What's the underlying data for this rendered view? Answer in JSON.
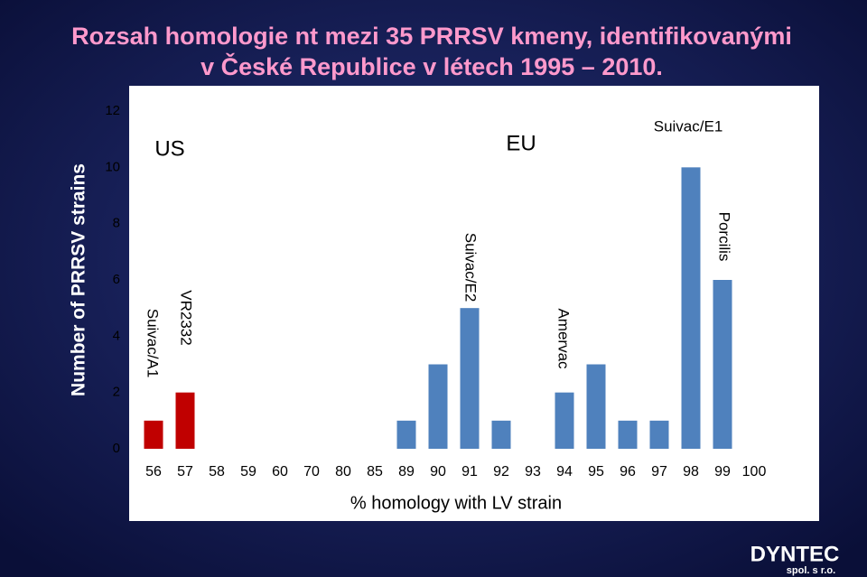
{
  "chart_data": {
    "type": "bar",
    "title": [
      "Rozsah homologie nt mezi 35 PRRSV kmeny, identifikovanými",
      "v České Republice v létech 1995 – 2010."
    ],
    "x_label": "% homology with LV strain",
    "y_label": "Number of PRRSV strains",
    "categories": [
      "56",
      "57",
      "58",
      "59",
      "60",
      "70",
      "80",
      "85",
      "89",
      "90",
      "91",
      "92",
      "93",
      "94",
      "95",
      "96",
      "97",
      "98",
      "99",
      "100"
    ],
    "values": [
      1,
      2,
      0,
      0,
      0,
      0,
      0,
      0,
      1,
      3,
      5,
      1,
      0,
      2,
      3,
      1,
      1,
      10,
      6,
      0
    ],
    "colors": [
      "#c00000",
      "#c00000",
      "#4f81bd",
      "#4f81bd",
      "#4f81bd",
      "#4f81bd",
      "#4f81bd",
      "#4f81bd",
      "#4f81bd",
      "#4f81bd",
      "#4f81bd",
      "#4f81bd",
      "#4f81bd",
      "#4f81bd",
      "#4f81bd",
      "#4f81bd",
      "#4f81bd",
      "#4f81bd",
      "#4f81bd",
      "#4f81bd"
    ],
    "ylim": [
      0,
      12
    ],
    "yticks": [
      0,
      2,
      4,
      6,
      8,
      10,
      12
    ],
    "grid": false,
    "annotations": [
      "US",
      "EU",
      "Suivac/E1",
      "Suivac/A1",
      "VR2332",
      "Suivac/E2",
      "Amervac",
      "Porcilis"
    ]
  },
  "logo": {
    "name": "DYNTEC",
    "subtitle": "spol. s r.o."
  }
}
